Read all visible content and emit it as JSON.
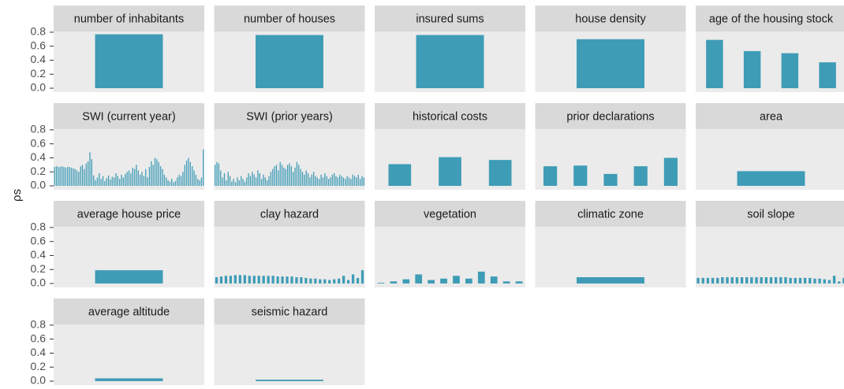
{
  "chart_data": {
    "type": "bar",
    "ylabel": "ρs",
    "color": "#3f9cb6",
    "ylim": [
      -0.056,
      0.81
    ],
    "yticks": [
      {
        "value": 0,
        "label": "0.0"
      },
      0.2,
      0.4,
      0.6,
      0.8
    ],
    "grid": false,
    "facets": [
      {
        "title": "number of inhabitants",
        "values": [
          0.77
        ]
      },
      {
        "title": "number of houses",
        "values": [
          0.76
        ]
      },
      {
        "title": "insured sums",
        "values": [
          0.76
        ]
      },
      {
        "title": "house density",
        "values": [
          0.7
        ]
      },
      {
        "title": "age of the housing stock",
        "values": [
          0.69,
          0.53,
          0.5,
          0.37
        ]
      },
      {
        "title": "SWI (current year)",
        "values": [
          0.27,
          0.28,
          0.27,
          0.27,
          0.28,
          0.27,
          0.26,
          0.27,
          0.27,
          0.26,
          0.25,
          0.24,
          0.22,
          0.2,
          0.28,
          0.3,
          0.24,
          0.32,
          0.35,
          0.48,
          0.38,
          0.15,
          0.08,
          0.12,
          0.18,
          0.1,
          0.14,
          0.07,
          0.11,
          0.15,
          0.09,
          0.13,
          0.12,
          0.18,
          0.14,
          0.1,
          0.16,
          0.12,
          0.17,
          0.2,
          0.22,
          0.18,
          0.26,
          0.24,
          0.3,
          0.22,
          0.16,
          0.2,
          0.14,
          0.24,
          0.12,
          0.27,
          0.35,
          0.3,
          0.4,
          0.38,
          0.34,
          0.28,
          0.24,
          0.16,
          0.12,
          0.08,
          0.06,
          0.1,
          0.05,
          0.07,
          0.12,
          0.16,
          0.14,
          0.2,
          0.3,
          0.36,
          0.4,
          0.34,
          0.28,
          0.22,
          0.16,
          0.1,
          0.08,
          0.12,
          0.52
        ]
      },
      {
        "title": "SWI (prior years)",
        "values": [
          0.3,
          0.34,
          0.32,
          0.22,
          0.12,
          0.18,
          0.08,
          0.2,
          0.14,
          0.06,
          0.1,
          0.05,
          0.12,
          0.08,
          0.14,
          0.1,
          0.06,
          0.12,
          0.18,
          0.14,
          0.2,
          0.16,
          0.12,
          0.22,
          0.18,
          0.1,
          0.16,
          0.12,
          0.08,
          0.14,
          0.2,
          0.24,
          0.28,
          0.3,
          0.22,
          0.34,
          0.3,
          0.26,
          0.24,
          0.3,
          0.32,
          0.28,
          0.2,
          0.26,
          0.34,
          0.3,
          0.24,
          0.2,
          0.16,
          0.22,
          0.18,
          0.12,
          0.16,
          0.2,
          0.14,
          0.12,
          0.1,
          0.16,
          0.12,
          0.18,
          0.14,
          0.1,
          0.12,
          0.16,
          0.18,
          0.14,
          0.12,
          0.16,
          0.14,
          0.12,
          0.1,
          0.14,
          0.12,
          0.1,
          0.16,
          0.14,
          0.12,
          0.16,
          0.1,
          0.14,
          0.12
        ]
      },
      {
        "title": "historical costs",
        "values": [
          0.31,
          0.41,
          0.37
        ]
      },
      {
        "title": "prior declarations",
        "values": [
          0.28,
          0.29,
          0.17,
          0.28,
          0.4
        ]
      },
      {
        "title": "area",
        "values": [
          0.21
        ]
      },
      {
        "title": "average house price",
        "values": [
          0.19
        ]
      },
      {
        "title": "clay hazard",
        "values": [
          0.09,
          0.1,
          0.11,
          0.11,
          0.12,
          0.12,
          0.12,
          0.11,
          0.11,
          0.11,
          0.11,
          0.11,
          0.11,
          0.1,
          0.1,
          0.1,
          0.1,
          0.09,
          0.09,
          0.08,
          0.07,
          0.07,
          0.06,
          0.06,
          0.05,
          0.06,
          0.07,
          0.11,
          0.05,
          0.13,
          0.08,
          0.19
        ]
      },
      {
        "title": "vegetation",
        "values": [
          0.01,
          0.03,
          0.06,
          0.13,
          0.05,
          0.07,
          0.11,
          0.07,
          0.17,
          0.1,
          0.03,
          0.03
        ]
      },
      {
        "title": "climatic zone",
        "values": [
          0.09
        ]
      },
      {
        "title": "soil slope",
        "values": [
          0.08,
          0.08,
          0.08,
          0.08,
          0.08,
          0.09,
          0.09,
          0.09,
          0.09,
          0.09,
          0.09,
          0.09,
          0.09,
          0.09,
          0.09,
          0.09,
          0.09,
          0.09,
          0.09,
          0.08,
          0.08,
          0.08,
          0.08,
          0.08,
          0.07,
          0.07,
          0.06,
          0.05,
          0.11,
          0.03,
          0.08
        ]
      },
      {
        "title": "average altitude",
        "values": [
          0.04
        ]
      },
      {
        "title": "seismic hazard",
        "values": [
          0.02
        ]
      }
    ]
  }
}
